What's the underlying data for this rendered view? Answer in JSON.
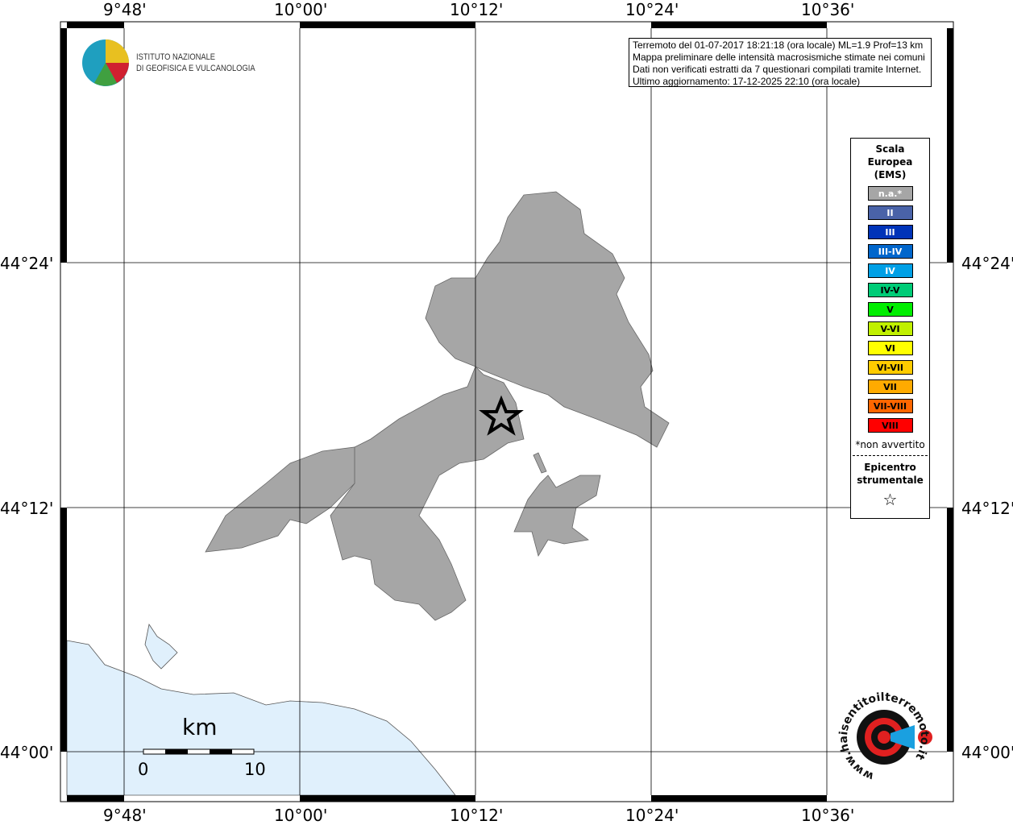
{
  "map": {
    "lon_ticks": [
      "9°48'",
      "10°00'",
      "10°12'",
      "10°24'",
      "10°36'"
    ],
    "lat_ticks": [
      "44°24'",
      "44°12'",
      "44°00'"
    ],
    "sea_color": "#e0f0fc",
    "municipality_color": "#a6a6a6"
  },
  "logo": {
    "institute": [
      "ISTITUTO NAZIONALE",
      "DI GEOFISICA E VULCANOLOGIA"
    ],
    "site": "www.haisentitoilterremoto.it"
  },
  "info": {
    "lines": [
      "Terremoto del 01-07-2017 18:21:18 (ora locale) ML=1.9 Prof=13 km",
      "Mappa preliminare delle intensità macrosismiche stimate nei comuni",
      "Dati non verificati estratti da 7 questionari compilati tramite Internet.",
      "Ultimo aggiornamento: 17-12-2025 22:10 (ora locale)"
    ]
  },
  "legend": {
    "title": [
      "Scala",
      "Europea",
      "(EMS)"
    ],
    "items": [
      {
        "label": "n.a.*",
        "color": "#a6a6a6",
        "text": "#fff"
      },
      {
        "label": "II",
        "color": "#4a63a8",
        "text": "#fff"
      },
      {
        "label": "III",
        "color": "#0033b8",
        "text": "#fff"
      },
      {
        "label": "III-IV",
        "color": "#0066cc",
        "text": "#fff"
      },
      {
        "label": "IV",
        "color": "#00a0e6",
        "text": "#fff"
      },
      {
        "label": "IV-V",
        "color": "#00cc77",
        "text": "#000"
      },
      {
        "label": "V",
        "color": "#00ee00",
        "text": "#000"
      },
      {
        "label": "V-VI",
        "color": "#c0f000",
        "text": "#000"
      },
      {
        "label": "VI",
        "color": "#ffff00",
        "text": "#000"
      },
      {
        "label": "VI-VII",
        "color": "#ffcc00",
        "text": "#000"
      },
      {
        "label": "VII",
        "color": "#ffaa00",
        "text": "#000"
      },
      {
        "label": "VII-VIII",
        "color": "#ff6600",
        "text": "#000"
      },
      {
        "label": "VIII",
        "color": "#ff0000",
        "text": "#000"
      }
    ],
    "note": "*non avvertito",
    "epicenter": [
      "Epicentro",
      "strumentale"
    ]
  },
  "scalebar": {
    "unit": "km",
    "start": "0",
    "end": "10"
  }
}
